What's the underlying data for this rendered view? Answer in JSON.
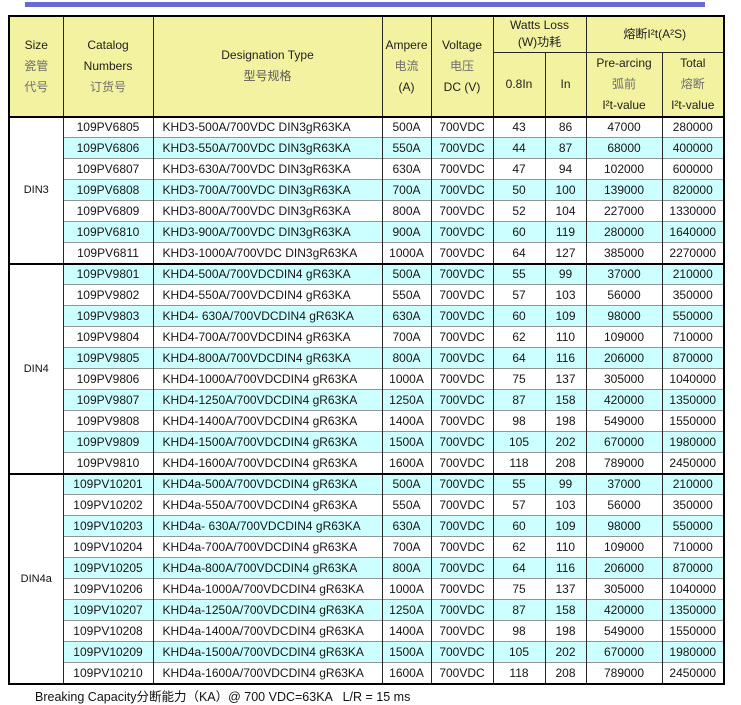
{
  "colors": {
    "top_bar": "#6A6AD4",
    "header_bg": "#F2F2A0",
    "row_alt_bg": "#CCFFFF",
    "border": "#000000"
  },
  "header": {
    "size_col": {
      "line1": "Size",
      "line2": "瓷管",
      "line3": "代号"
    },
    "catalog_col": {
      "line1": "Catalog",
      "line2": "Numbers",
      "line3": "订货号"
    },
    "designation_col": {
      "line1": "Designation Type",
      "line2": "型号规格"
    },
    "ampere_col": {
      "line1": "Ampere",
      "line2": "电流",
      "line3": "(A)"
    },
    "voltage_col": {
      "line1": "Voltage",
      "line2": "电压",
      "line3": "DC (V)"
    },
    "watts_group": {
      "line1": "Watts Loss",
      "line2": "(W)功耗"
    },
    "watts_sub_08": "0.8In",
    "watts_sub_in": "In",
    "i2t_group_title": "熔断I²t(A²S)",
    "prearcing_col": {
      "line1": "Pre-arcing",
      "line2": "弧前",
      "line3": "I²t-value"
    },
    "total_col": {
      "line1": "Total",
      "line2": "熔断",
      "line3": "I²t-value"
    }
  },
  "table": {
    "sections": [
      {
        "size": "DIN3",
        "rows": [
          [
            "109PV6805",
            "KHD3-500A/700VDC DIN3gR63KA",
            "500A",
            "700VDC",
            "43",
            "86",
            "47000",
            "280000"
          ],
          [
            "109PV6806",
            "KHD3-550A/700VDC DIN3gR63KA",
            "550A",
            "700VDC",
            "44",
            "87",
            "68000",
            "400000"
          ],
          [
            "109PV6807",
            "KHD3-630A/700VDC DIN3gR63KA",
            "630A",
            "700VDC",
            "47",
            "94",
            "102000",
            "600000"
          ],
          [
            "109PV6808",
            "KHD3-700A/700VDC DIN3gR63KA",
            "700A",
            "700VDC",
            "50",
            "100",
            "139000",
            "820000"
          ],
          [
            "109PV6809",
            "KHD3-800A/700VDC DIN3gR63KA",
            "800A",
            "700VDC",
            "52",
            "104",
            "227000",
            "1330000"
          ],
          [
            "109PV6810",
            "KHD3-900A/700VDC DIN3gR63KA",
            "900A",
            "700VDC",
            "60",
            "119",
            "280000",
            "1640000"
          ],
          [
            "109PV6811",
            "KHD3-1000A/700VDC DIN3gR63KA",
            "1000A",
            "700VDC",
            "64",
            "127",
            "385000",
            "2270000"
          ]
        ]
      },
      {
        "size": "DIN4",
        "rows": [
          [
            "109PV9801",
            "KHD4-500A/700VDCDIN4 gR63KA",
            "500A",
            "700VDC",
            "55",
            "99",
            "37000",
            "210000"
          ],
          [
            "109PV9802",
            "KHD4-550A/700VDCDIN4 gR63KA",
            "550A",
            "700VDC",
            "57",
            "103",
            "56000",
            "350000"
          ],
          [
            "109PV9803",
            "KHD4- 630A/700VDCDIN4 gR63KA",
            "630A",
            "700VDC",
            "60",
            "109",
            "98000",
            "550000"
          ],
          [
            "109PV9804",
            "KHD4-700A/700VDCDIN4 gR63KA",
            "700A",
            "700VDC",
            "62",
            "110",
            "109000",
            "710000"
          ],
          [
            "109PV9805",
            "KHD4-800A/700VDCDIN4 gR63KA",
            "800A",
            "700VDC",
            "64",
            "116",
            "206000",
            "870000"
          ],
          [
            "109PV9806",
            "KHD4-1000A/700VDCDIN4 gR63KA",
            "1000A",
            "700VDC",
            "75",
            "137",
            "305000",
            "1040000"
          ],
          [
            "109PV9807",
            "KHD4-1250A/700VDCDIN4 gR63KA",
            "1250A",
            "700VDC",
            "87",
            "158",
            "420000",
            "1350000"
          ],
          [
            "109PV9808",
            "KHD4-1400A/700VDCDIN4 gR63KA",
            "1400A",
            "700VDC",
            "98",
            "198",
            "549000",
            "1550000"
          ],
          [
            "109PV9809",
            "KHD4-1500A/700VDCDIN4 gR63KA",
            "1500A",
            "700VDC",
            "105",
            "202",
            "670000",
            "1980000"
          ],
          [
            "109PV9810",
            "KHD4-1600A/700VDCDIN4 gR63KA",
            "1600A",
            "700VDC",
            "118",
            "208",
            "789000",
            "2450000"
          ]
        ]
      },
      {
        "size": "DIN4a",
        "rows": [
          [
            "109PV10201",
            "KHD4a-500A/700VDCDIN4 gR63KA",
            "500A",
            "700VDC",
            "55",
            "99",
            "37000",
            "210000"
          ],
          [
            "109PV10202",
            "KHD4a-550A/700VDCDIN4 gR63KA",
            "550A",
            "700VDC",
            "57",
            "103",
            "56000",
            "350000"
          ],
          [
            "109PV10203",
            "KHD4a- 630A/700VDCDIN4 gR63KA",
            "630A",
            "700VDC",
            "60",
            "109",
            "98000",
            "550000"
          ],
          [
            "109PV10204",
            "KHD4a-700A/700VDCDIN4 gR63KA",
            "700A",
            "700VDC",
            "62",
            "110",
            "109000",
            "710000"
          ],
          [
            "109PV10205",
            "KHD4a-800A/700VDCDIN4 gR63KA",
            "800A",
            "700VDC",
            "64",
            "116",
            "206000",
            "870000"
          ],
          [
            "109PV10206",
            "KHD4a-1000A/700VDCDIN4 gR63KA",
            "1000A",
            "700VDC",
            "75",
            "137",
            "305000",
            "1040000"
          ],
          [
            "109PV10207",
            "KHD4a-1250A/700VDCDIN4 gR63KA",
            "1250A",
            "700VDC",
            "87",
            "158",
            "420000",
            "1350000"
          ],
          [
            "109PV10208",
            "KHD4a-1400A/700VDCDIN4 gR63KA",
            "1400A",
            "700VDC",
            "98",
            "198",
            "549000",
            "1550000"
          ],
          [
            "109PV10209",
            "KHD4a-1500A/700VDCDIN4 gR63KA",
            "1500A",
            "700VDC",
            "105",
            "202",
            "670000",
            "1980000"
          ],
          [
            "109PV10210",
            "KHD4a-1600A/700VDCDIN4 gR63KA",
            "1600A",
            "700VDC",
            "118",
            "208",
            "789000",
            "2450000"
          ]
        ]
      }
    ]
  },
  "footer": {
    "note": "Breaking Capacity分断能力（KA）@ 700 VDC=63KA   L/R = 15 ms"
  }
}
